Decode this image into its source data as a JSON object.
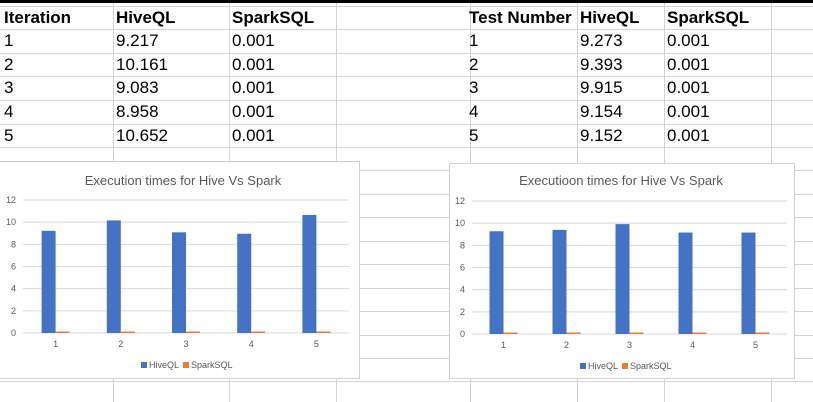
{
  "table_left": {
    "headers": [
      "Iteration",
      "HiveQL",
      "SparkSQL"
    ],
    "rows": [
      [
        "1",
        "9.217",
        "0.001"
      ],
      [
        "2",
        "10.161",
        "0.001"
      ],
      [
        "3",
        "9.083",
        "0.001"
      ],
      [
        "4",
        "8.958",
        "0.001"
      ],
      [
        "5",
        "10.652",
        "0.001"
      ]
    ]
  },
  "table_right": {
    "headers": [
      "Test Number",
      "HiveQL",
      "SparkSQL"
    ],
    "rows": [
      [
        "1",
        "9.273",
        "0.001"
      ],
      [
        "2",
        "9.393",
        "0.001"
      ],
      [
        "3",
        "9.915",
        "0.001"
      ],
      [
        "4",
        "9.154",
        "0.001"
      ],
      [
        "5",
        "9.152",
        "0.001"
      ]
    ]
  },
  "colors": {
    "hiveql": "#4472C4",
    "sparksql": "#ED7D31",
    "gridline": "#D9D9D9",
    "cell_border": "#D4D4D4",
    "chart_text": "#595959"
  },
  "chart_data": [
    {
      "type": "bar",
      "title": "Execution times for Hive Vs Spark",
      "categories": [
        "1",
        "2",
        "3",
        "4",
        "5"
      ],
      "series": [
        {
          "name": "HiveQL",
          "values": [
            9.217,
            10.161,
            9.083,
            8.958,
            10.652
          ]
        },
        {
          "name": "SparkSQL",
          "values": [
            0.001,
            0.001,
            0.001,
            0.001,
            0.001
          ]
        }
      ],
      "yticks": [
        "0",
        "2",
        "4",
        "6",
        "8",
        "10",
        "12"
      ],
      "ylim": [
        0,
        12
      ],
      "grid": true,
      "legend": "bottom"
    },
    {
      "type": "bar",
      "title": "Executioon times for Hive Vs Spark",
      "categories": [
        "1",
        "2",
        "3",
        "4",
        "5"
      ],
      "series": [
        {
          "name": "HiveQL",
          "values": [
            9.273,
            9.393,
            9.915,
            9.154,
            9.152
          ]
        },
        {
          "name": "SparkSQL",
          "values": [
            0.001,
            0.001,
            0.001,
            0.001,
            0.001
          ]
        }
      ],
      "yticks": [
        "0",
        "2",
        "4",
        "6",
        "8",
        "10",
        "12"
      ],
      "ylim": [
        0,
        12
      ],
      "grid": true,
      "legend": "bottom"
    }
  ]
}
